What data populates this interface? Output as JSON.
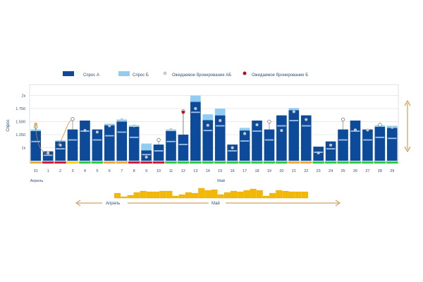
{
  "legend": {
    "series_a_label": "Спрос А",
    "series_b_label": "Спрос Б",
    "expected_ab_label": "Ожидаемое бронирование АБ",
    "expected_b_label": "Ожидаемое бронирование Б"
  },
  "colors": {
    "series_a": "#0d4a9a",
    "series_b": "#8fcdf2",
    "stripe": "#9ec3ea",
    "marker_ab": "#c9c9c9",
    "marker_b": "#b3121f",
    "grid": "#d7d7d7",
    "axis_text": "#2f4f7a",
    "navigator_bar": "#f5b800",
    "arrow": "#c8883a",
    "status_green": "#2ecc40",
    "status_red": "#cc1f36",
    "status_orange": "#f2a93b",
    "status_yellow": "#f5d400"
  },
  "chart_data": {
    "type": "bar",
    "ylabel": "Спрос",
    "ylim": [
      500,
      2000
    ],
    "yticks": [
      {
        "value": 1000,
        "label": "1к"
      },
      {
        "value": 1250,
        "label": "1.250"
      },
      {
        "value": 1500,
        "label": "1.500"
      },
      {
        "value": 1750,
        "label": "1.750"
      },
      {
        "value": 2000,
        "label": "2к"
      }
    ],
    "categories": [
      "31",
      "1",
      "2",
      "3",
      "4",
      "5",
      "6",
      "7",
      "8",
      "9",
      "10",
      "11",
      "12",
      "13",
      "14",
      "15",
      "16",
      "17",
      "18",
      "19",
      "20",
      "21",
      "22",
      "23",
      "24",
      "25",
      "26",
      "27",
      "28",
      "29"
    ],
    "month_labels": [
      {
        "label": "Апрель",
        "at_index": 0
      },
      {
        "label": "Май",
        "at_index": 15
      }
    ],
    "series": [
      {
        "name": "Спрос А",
        "values": [
          1320,
          930,
          1120,
          1350,
          1520,
          1350,
          1430,
          1500,
          1400,
          950,
          1060,
          1320,
          1250,
          1880,
          1530,
          1620,
          1060,
          1330,
          1520,
          1350,
          1620,
          1720,
          1620,
          1020,
          1120,
          1350,
          1520,
          1350,
          1400,
          1380
        ]
      },
      {
        "name": "Спрос Б",
        "values": [
          30,
          0,
          20,
          0,
          0,
          0,
          30,
          40,
          30,
          130,
          0,
          30,
          0,
          120,
          110,
          130,
          0,
          50,
          0,
          0,
          0,
          40,
          0,
          0,
          0,
          0,
          0,
          0,
          30,
          40
        ]
      }
    ],
    "expected_ab": [
      1400,
      900,
      1050,
      1550,
      1330,
      1300,
      1420,
      1540,
      1420,
      820,
      1150,
      1350,
      1700,
      1750,
      1430,
      1520,
      1000,
      1270,
      1440,
      1500,
      1330,
      1690,
      1540,
      900,
      1050,
      1540,
      1340,
      1340,
      1440,
      1390
    ],
    "expected_b": [
      1450,
      null,
      null,
      null,
      null,
      null,
      null,
      null,
      null,
      null,
      null,
      null,
      1680,
      null,
      null,
      null,
      null,
      null,
      null,
      null,
      null,
      null,
      null,
      null,
      null,
      null,
      null,
      null,
      null,
      null
    ],
    "status": [
      "orange",
      "red",
      "red",
      "yellow",
      "green",
      "green",
      "orange",
      "orange",
      "red",
      "red",
      "red",
      "green",
      "green",
      "green",
      "green",
      "green",
      "green",
      "green",
      "green",
      "green",
      "green",
      "orange",
      "orange",
      "green",
      "green",
      "green",
      "green",
      "green",
      "green",
      "green"
    ],
    "navigator": {
      "values": [
        7,
        2,
        4,
        8,
        10,
        9,
        9,
        10,
        10,
        3,
        5,
        8,
        7,
        14,
        11,
        12,
        5,
        8,
        10,
        9,
        11,
        13,
        11,
        3,
        7,
        11,
        10,
        9,
        9,
        9
      ],
      "month_labels": [
        "Апрель",
        "Май"
      ]
    }
  }
}
